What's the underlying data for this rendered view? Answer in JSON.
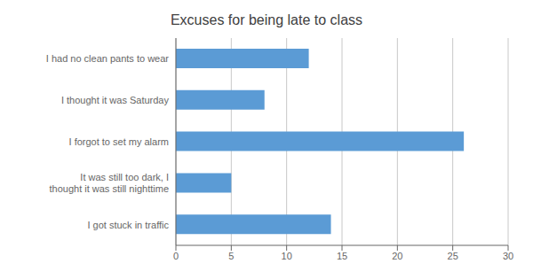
{
  "chart_data": {
    "type": "bar",
    "orientation": "horizontal",
    "title": "Excuses for being late to class",
    "categories": [
      "I got stuck in traffic",
      "It was still too dark, I thought it was still nighttime",
      "I forgot to set my alarm",
      "I thought it was Saturday",
      "I had no clean pants to wear"
    ],
    "values": [
      14,
      5,
      26,
      8,
      12
    ],
    "color": "#5B9BD5",
    "xlim": [
      0,
      30
    ],
    "xticks": [
      0,
      5,
      10,
      15,
      20,
      25,
      30
    ],
    "grid": true
  }
}
